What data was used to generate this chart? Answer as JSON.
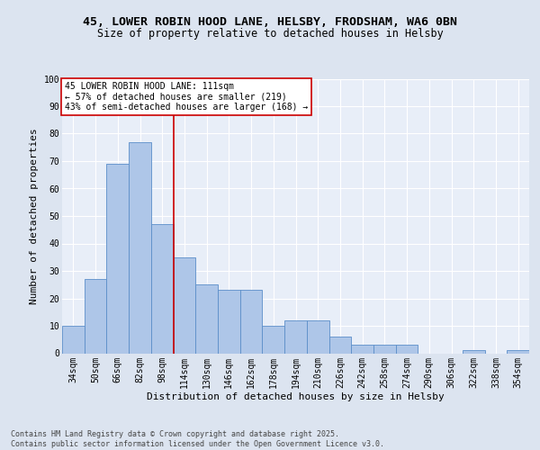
{
  "title_line1": "45, LOWER ROBIN HOOD LANE, HELSBY, FRODSHAM, WA6 0BN",
  "title_line2": "Size of property relative to detached houses in Helsby",
  "xlabel": "Distribution of detached houses by size in Helsby",
  "ylabel": "Number of detached properties",
  "categories": [
    "34sqm",
    "50sqm",
    "66sqm",
    "82sqm",
    "98sqm",
    "114sqm",
    "130sqm",
    "146sqm",
    "162sqm",
    "178sqm",
    "194sqm",
    "210sqm",
    "226sqm",
    "242sqm",
    "258sqm",
    "274sqm",
    "290sqm",
    "306sqm",
    "322sqm",
    "338sqm",
    "354sqm"
  ],
  "values": [
    10,
    27,
    69,
    77,
    47,
    35,
    25,
    23,
    23,
    10,
    12,
    12,
    6,
    3,
    3,
    3,
    0,
    0,
    1,
    0,
    1
  ],
  "bar_color": "#aec6e8",
  "bar_edge_color": "#5b8ec9",
  "property_line_x": 4.5,
  "annotation_text_line1": "45 LOWER ROBIN HOOD LANE: 111sqm",
  "annotation_text_line2": "← 57% of detached houses are smaller (219)",
  "annotation_text_line3": "43% of semi-detached houses are larger (168) →",
  "annotation_box_color": "#ffffff",
  "annotation_border_color": "#cc0000",
  "vline_color": "#cc0000",
  "footer_line1": "Contains HM Land Registry data © Crown copyright and database right 2025.",
  "footer_line2": "Contains public sector information licensed under the Open Government Licence v3.0.",
  "ylim": [
    0,
    100
  ],
  "bg_color": "#dce4f0",
  "plot_bg_color": "#e8eef8",
  "grid_color": "#ffffff",
  "title_fontsize": 9.5,
  "subtitle_fontsize": 8.5,
  "axis_label_fontsize": 8,
  "tick_fontsize": 7,
  "annotation_fontsize": 7,
  "footer_fontsize": 6
}
